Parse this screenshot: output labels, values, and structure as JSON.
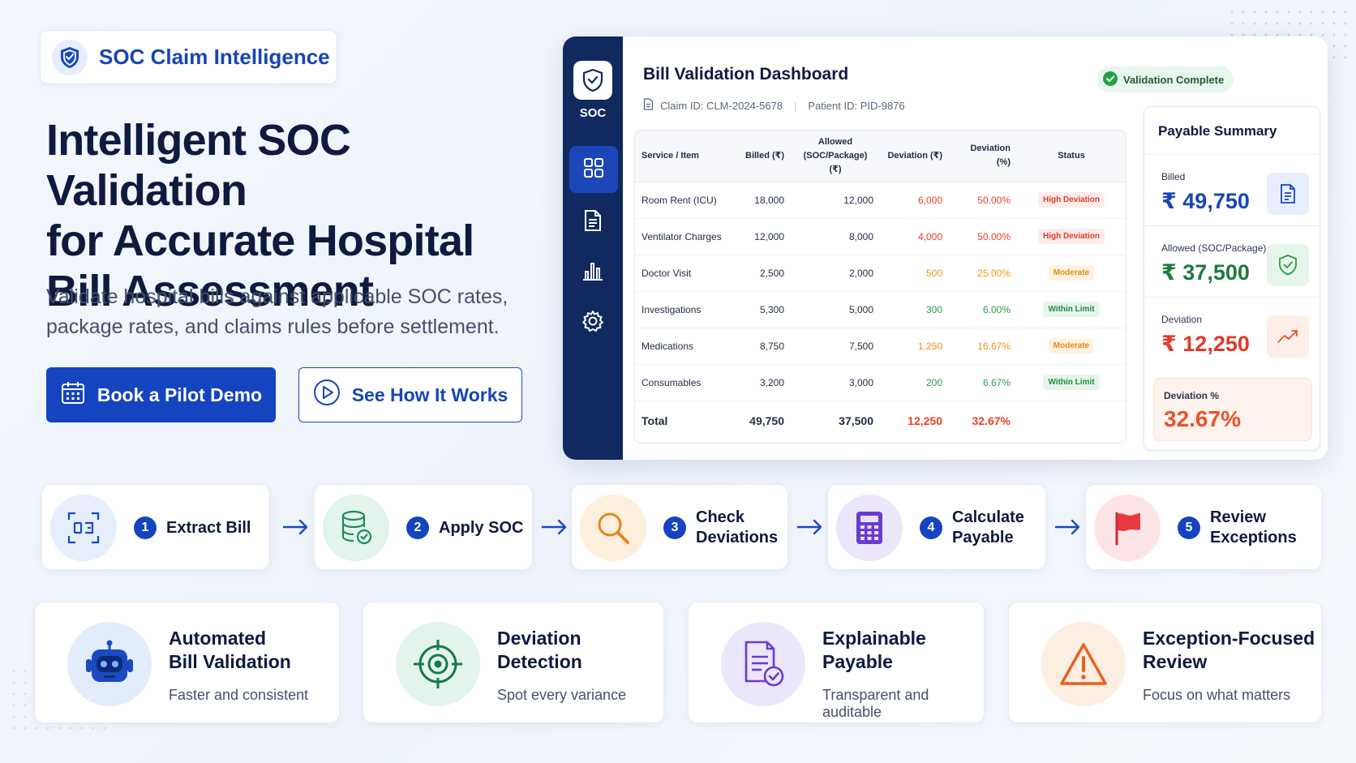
{
  "brand": {
    "name": "SOC Claim Intelligence"
  },
  "hero": {
    "headline_1": "Intelligent SOC Validation",
    "headline_2": "for Accurate Hospital",
    "headline_3": "Bill Assessment",
    "subtext": "Validate hospital bills against applicable SOC rates, package rates, and claims rules before settlement.",
    "primary_button": "Book a Pilot Demo",
    "secondary_button": "See How It Works"
  },
  "dashboard": {
    "sidebar_logo_text": "SOC",
    "title": "Bill Validation Dashboard",
    "claim_id": "Claim ID: CLM-2024-5678",
    "patient_id": "Patient ID: PID-9876",
    "badge": "Validation Complete",
    "table": {
      "headers": [
        "Service / Item",
        "Billed (₹)",
        "Allowed",
        "(SOC/Package) (₹)",
        "Deviation (₹)",
        "Deviation (%)",
        "Status"
      ],
      "rows": [
        {
          "item": "Room Rent (ICU)",
          "billed": "18,000",
          "allowed": "12,000",
          "dev": "6,000",
          "pct": "50.00%",
          "status": "High Deviation",
          "level": "high"
        },
        {
          "item": "Ventilator Charges",
          "billed": "12,000",
          "allowed": "8,000",
          "dev": "4,000",
          "pct": "50.00%",
          "status": "High Deviation",
          "level": "high"
        },
        {
          "item": "Doctor Visit",
          "billed": "2,500",
          "allowed": "2,000",
          "dev": "500",
          "pct": "25.00%",
          "status": "Moderate",
          "level": "mod"
        },
        {
          "item": "Investigations",
          "billed": "5,300",
          "allowed": "5,000",
          "dev": "300",
          "pct": "6.00%",
          "status": "Within Limit",
          "level": "ok"
        },
        {
          "item": "Medications",
          "billed": "8,750",
          "allowed": "7,500",
          "dev": "1,250",
          "pct": "16.67%",
          "status": "Moderate",
          "level": "mod"
        },
        {
          "item": "Consumables",
          "billed": "3,200",
          "allowed": "3,000",
          "dev": "200",
          "pct": "6.67%",
          "status": "Within Limit",
          "level": "ok"
        }
      ],
      "total": {
        "label": "Total",
        "billed": "49,750",
        "allowed": "37,500",
        "dev": "12,250",
        "pct": "32.67%"
      }
    },
    "summary": {
      "title": "Payable Summary",
      "billed_label": "Billed",
      "billed_value": "₹ 49,750",
      "allowed_label": "Allowed (SOC/Package)",
      "allowed_value": "₹ 37,500",
      "deviation_label": "Deviation",
      "deviation_value": "₹ 12,250",
      "deviation_pct_label": "Deviation %",
      "deviation_pct_value": "32.67%"
    }
  },
  "steps": [
    {
      "num": "1",
      "label": "Extract Bill"
    },
    {
      "num": "2",
      "label": "Apply SOC"
    },
    {
      "num": "3",
      "label": "Check Deviations",
      "line1": "Check",
      "line2": "Deviations"
    },
    {
      "num": "4",
      "label": "Calculate Payable",
      "line1": "Calculate",
      "line2": "Payable"
    },
    {
      "num": "5",
      "label": "Review Exceptions",
      "line1": "Review",
      "line2": "Exceptions"
    }
  ],
  "features": [
    {
      "title_1": "Automated",
      "title_2": "Bill Validation",
      "desc": "Faster and consistent"
    },
    {
      "title_1": "Deviation",
      "title_2": "Detection",
      "desc": "Spot every variance"
    },
    {
      "title_1": "Explainable",
      "title_2": "Payable",
      "desc": "Transparent and auditable"
    },
    {
      "title_1": "Exception-Focused",
      "title_2": "Review",
      "desc": "Focus on what matters"
    }
  ],
  "colors": {
    "primary": "#1444bf",
    "sidebar": "#10295e",
    "high": "#e8412b",
    "moderate": "#ee9514",
    "ok": "#2a9a48"
  }
}
